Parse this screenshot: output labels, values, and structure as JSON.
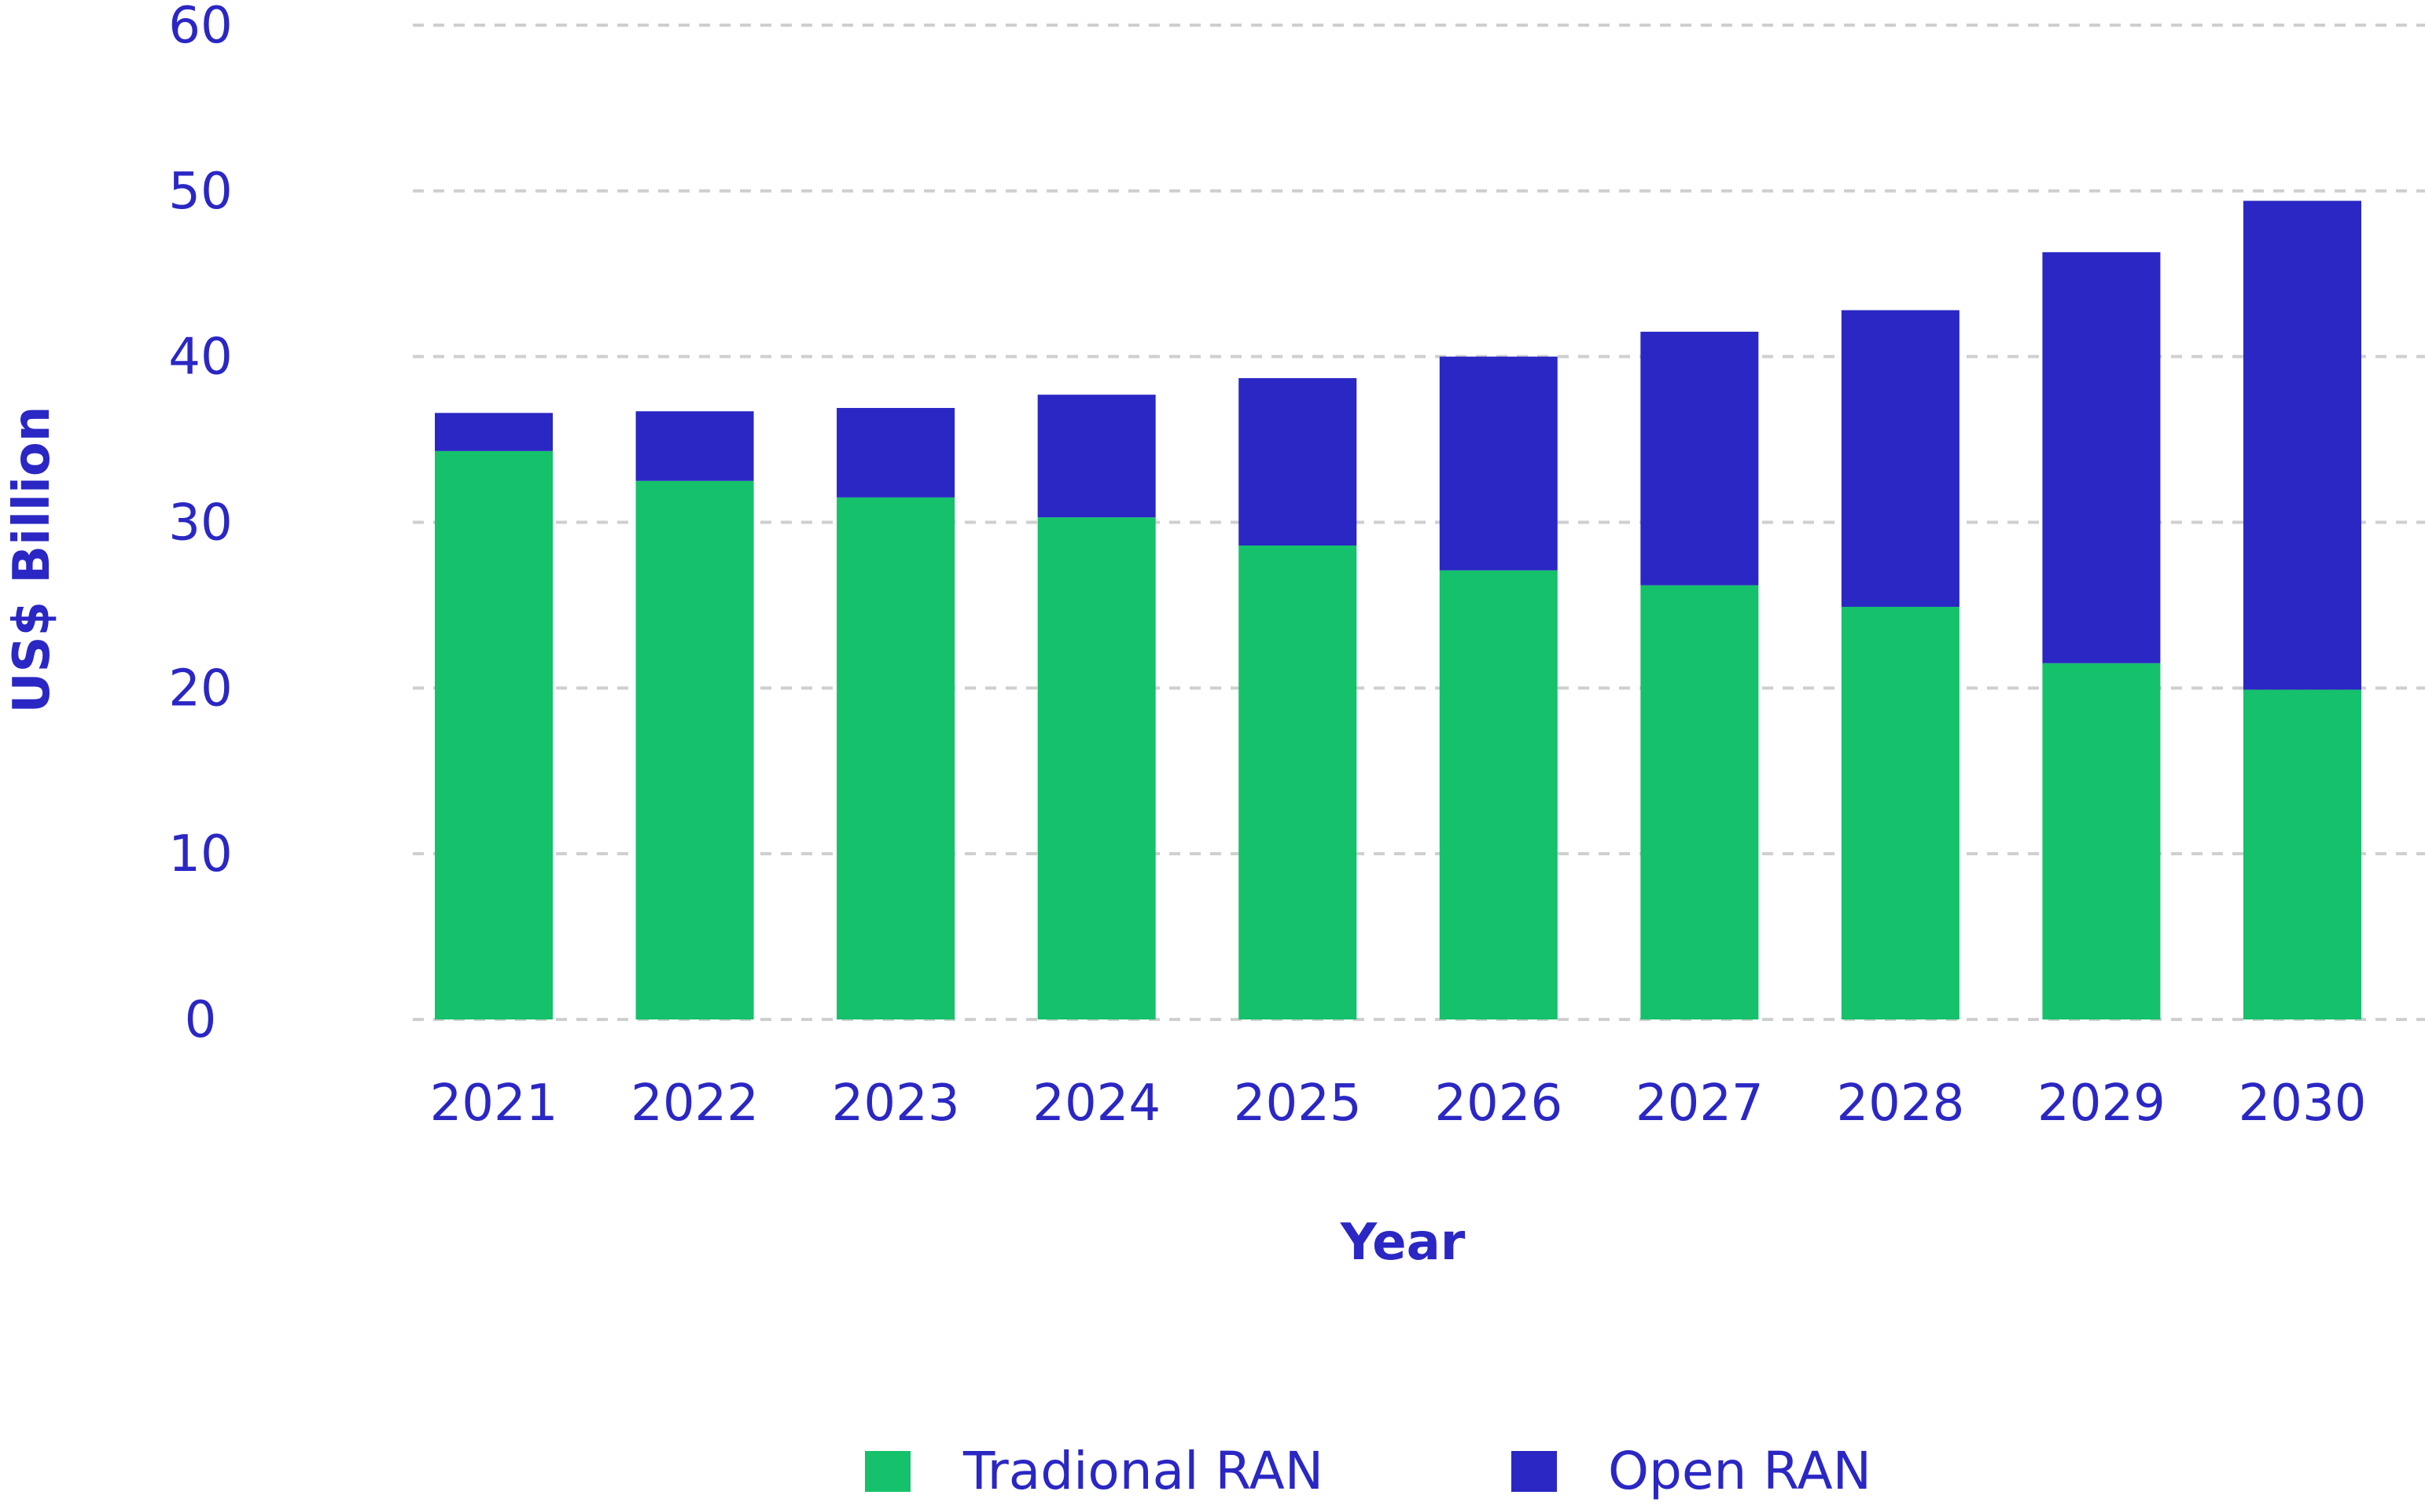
{
  "chart_data": {
    "type": "bar",
    "stacked": true,
    "categories": [
      "2021",
      "2022",
      "2023",
      "2024",
      "2025",
      "2026",
      "2027",
      "2028",
      "2029",
      "2030"
    ],
    "series": [
      {
        "name": "Tradional RAN",
        "color": "#15c16b",
        "values": [
          34.3,
          32.5,
          31.5,
          30.3,
          28.6,
          27.1,
          26.2,
          24.9,
          21.5,
          19.9
        ]
      },
      {
        "name": "Open RAN",
        "color": "#2a27c4",
        "values": [
          2.3,
          4.2,
          5.4,
          7.4,
          10.1,
          12.9,
          15.3,
          17.9,
          24.8,
          29.5
        ]
      }
    ],
    "title": "",
    "xlabel": "Year",
    "ylabel": "US$ Billion",
    "ylim": [
      0,
      60
    ],
    "yticks": [
      "0",
      "10",
      "20",
      "30",
      "40",
      "50",
      "60"
    ],
    "grid": "horizontal-dashed",
    "legend_position": "bottom-center",
    "text_color": "#2a27c4"
  }
}
